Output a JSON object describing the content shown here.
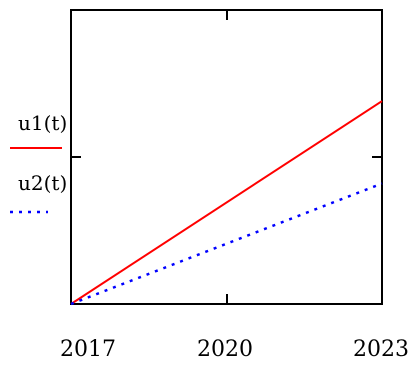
{
  "chart_data": {
    "type": "line",
    "x_label": "",
    "y_label": "",
    "xlim": [
      2016.8,
      2023
    ],
    "ylim": [
      0,
      1
    ],
    "x_ticks": [
      2017,
      2020,
      2023
    ],
    "x_tick_labels": [
      "2017",
      "2020",
      "2023"
    ],
    "grid": false,
    "legend_placement": "left",
    "series": [
      {
        "name": "u1(t)",
        "color": "#ff0000",
        "style": "solid",
        "x": [
          2016.8,
          2023
        ],
        "y": [
          0,
          0.69
        ]
      },
      {
        "name": "u2(t)",
        "color": "#0000ff",
        "style": "dotted",
        "x": [
          2016.8,
          2023
        ],
        "y": [
          0,
          0.41
        ]
      }
    ]
  }
}
